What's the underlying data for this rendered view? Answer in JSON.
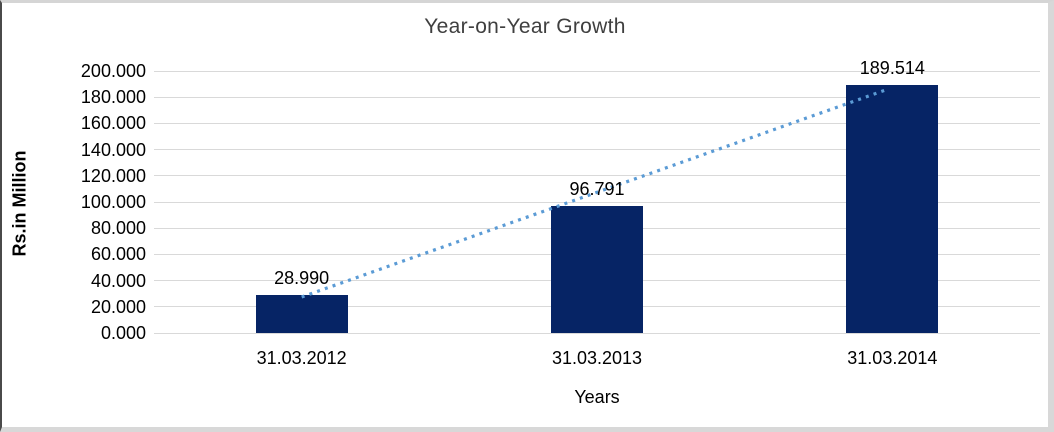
{
  "chart_data": {
    "type": "bar",
    "title": "Year-on-Year Growth",
    "xlabel": "Years",
    "ylabel": "Rs.in Million",
    "categories": [
      "31.03.2012",
      "31.03.2013",
      "31.03.2014"
    ],
    "values": [
      28.99,
      96.791,
      189.514
    ],
    "data_labels": [
      "28.990",
      "96.791",
      "189.514"
    ],
    "ylim": [
      0,
      200
    ],
    "ytick_labels": [
      "0.000",
      "20.000",
      "40.000",
      "60.000",
      "80.000",
      "100.000",
      "120.000",
      "140.000",
      "160.000",
      "180.000",
      "200.000"
    ],
    "grid": "horizontal",
    "legend": "none",
    "trendline": {
      "style": "dotted",
      "spans": "first-bar-top to last-bar-top"
    },
    "colors": {
      "bar": "#062465",
      "trendline": "#5b9bd5",
      "gridline": "#d9d9d9",
      "text": "#000000",
      "title_text": "#3f3f3f"
    }
  }
}
